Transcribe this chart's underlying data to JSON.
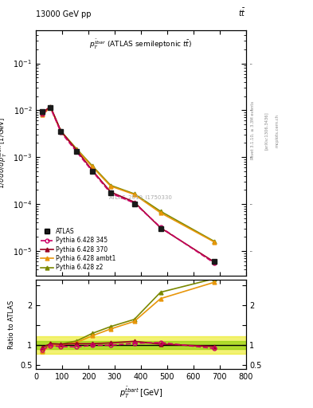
{
  "pt_bins": [
    25,
    55,
    95,
    155,
    215,
    285,
    375,
    475,
    680
  ],
  "atlas_y": [
    0.0095,
    0.0115,
    0.0035,
    0.00135,
    0.0005,
    0.00017,
    0.0001,
    3e-05,
    6e-06
  ],
  "p6_345_y": [
    0.0085,
    0.0114,
    0.0034,
    0.0013,
    0.0005,
    0.00017,
    0.000105,
    3.2e-05,
    5.5e-06
  ],
  "p6_370_y": [
    0.009,
    0.012,
    0.0036,
    0.0014,
    0.00052,
    0.00018,
    0.00011,
    3.1e-05,
    5.8e-06
  ],
  "p6_ambt1_y": [
    0.008,
    0.0115,
    0.0035,
    0.00145,
    0.00062,
    0.00024,
    0.00016,
    6.5e-05,
    1.55e-05
  ],
  "p6_z2_y": [
    0.0082,
    0.012,
    0.0036,
    0.0015,
    0.00065,
    0.00025,
    0.000165,
    7e-05,
    1.6e-05
  ],
  "ratio_p6_345": [
    0.89,
    0.99,
    0.97,
    0.96,
    1.0,
    1.0,
    1.05,
    1.07,
    0.92
  ],
  "ratio_p6_370": [
    0.95,
    1.04,
    1.03,
    1.04,
    1.04,
    1.06,
    1.1,
    1.03,
    0.97
  ],
  "ratio_p6_ambt1": [
    0.84,
    1.0,
    1.0,
    1.07,
    1.24,
    1.41,
    1.6,
    2.17,
    2.58
  ],
  "ratio_p6_z2": [
    0.86,
    1.04,
    1.03,
    1.11,
    1.3,
    1.47,
    1.65,
    2.33,
    2.67
  ],
  "color_atlas": "#1a1a1a",
  "color_345": "#cc0066",
  "color_370": "#990022",
  "color_ambt1": "#e8960a",
  "color_z2": "#7a8800",
  "ylim_main": [
    3e-06,
    0.5
  ],
  "ylim_ratio": [
    0.4,
    2.65
  ],
  "xlim": [
    0,
    800
  ]
}
